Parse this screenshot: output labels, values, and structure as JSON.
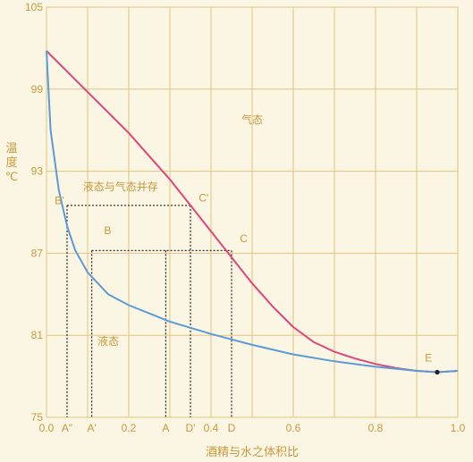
{
  "chart_data": {
    "type": "line",
    "xlabel": "酒精与水之体积比",
    "ylabel": [
      "温",
      "度",
      "℃"
    ],
    "xlim": [
      0,
      1
    ],
    "ylim": [
      75,
      105
    ],
    "x_ticks": [
      0.0,
      0.2,
      0.4,
      0.6,
      0.8,
      1.0
    ],
    "x_tick_labels": [
      "0.0",
      "0.2",
      "0.4",
      "0.6",
      "0.8",
      "1.0"
    ],
    "y_ticks": [
      75,
      81,
      87,
      93,
      99,
      105
    ],
    "grid": true,
    "series": [
      {
        "color": "#e0457a",
        "x": [
          0.0,
          0.05,
          0.1,
          0.15,
          0.2,
          0.25,
          0.3,
          0.35,
          0.4,
          0.45,
          0.5,
          0.55,
          0.6,
          0.65,
          0.7,
          0.75,
          0.8,
          0.85,
          0.9,
          0.95,
          1.0
        ],
        "y": [
          101.8,
          100.3,
          98.8,
          97.3,
          95.8,
          94.1,
          92.4,
          90.5,
          88.6,
          86.7,
          84.8,
          83.1,
          81.6,
          80.5,
          79.8,
          79.3,
          78.9,
          78.6,
          78.4,
          78.3,
          78.4
        ]
      },
      {
        "color": "#5b9bd5",
        "x": [
          0.0,
          0.01,
          0.03,
          0.05,
          0.07,
          0.1,
          0.15,
          0.2,
          0.3,
          0.4,
          0.5,
          0.6,
          0.7,
          0.8,
          0.9,
          0.95,
          1.0
        ],
        "y": [
          101.8,
          96.0,
          91.6,
          89.0,
          87.2,
          85.6,
          84.0,
          83.2,
          82.0,
          81.1,
          80.3,
          79.6,
          79.1,
          78.7,
          78.4,
          78.3,
          78.4
        ]
      }
    ],
    "guides": [
      {
        "label": "A\"",
        "x": 0.05,
        "y": 90.5,
        "to": "axis"
      },
      {
        "label": "A'",
        "x": 0.11,
        "y": 87.2,
        "to": "axis"
      },
      {
        "label": "A",
        "x": 0.29,
        "y": 87.2,
        "to": "axis"
      },
      {
        "label": "D'",
        "x": 0.35,
        "y": 90.5,
        "to": "axis"
      },
      {
        "label": "D",
        "x": 0.45,
        "y": 87.2,
        "to": "axis"
      }
    ],
    "tie_lines": [
      {
        "x1": 0.05,
        "x2": 0.35,
        "y": 90.5
      },
      {
        "x1": 0.11,
        "x2": 0.45,
        "y": 87.2
      }
    ],
    "point_labels": [
      {
        "label": "B'",
        "x": 0.02,
        "y": 90.6
      },
      {
        "label": "B",
        "x": 0.14,
        "y": 88.4
      },
      {
        "label": "C'",
        "x": 0.37,
        "y": 90.8
      },
      {
        "label": "C",
        "x": 0.47,
        "y": 87.8
      },
      {
        "label": "E",
        "x": 0.92,
        "y": 79.1
      }
    ],
    "marker": {
      "x": 0.95,
      "y": 78.3,
      "color": "#222222"
    },
    "region_labels": [
      {
        "text": "气态",
        "x": 0.5,
        "y": 96.5
      },
      {
        "text": "液态与气态并存",
        "x": 0.18,
        "y": 91.6
      },
      {
        "text": "液态",
        "x": 0.15,
        "y": 80.3
      }
    ]
  }
}
